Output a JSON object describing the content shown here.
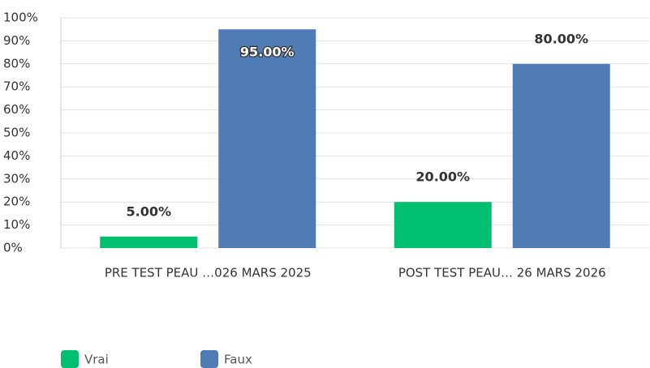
{
  "chart_data": {
    "type": "bar",
    "categories": [
      "PRE TEST PEAU …026 MARS 2025",
      "POST TEST PEAU… 26 MARS 2026"
    ],
    "series": [
      {
        "name": "Vrai",
        "color": "#00bf6f",
        "values": [
          5,
          20
        ],
        "value_labels": [
          "5.00%",
          "20.00%"
        ]
      },
      {
        "name": "Faux",
        "color": "#507cb6",
        "values": [
          95,
          80
        ],
        "value_labels": [
          "95.00%",
          "80.00%"
        ]
      }
    ],
    "ylim": [
      0,
      100
    ],
    "yticks": [
      {
        "value": 0,
        "label": "0%"
      },
      {
        "value": 10,
        "label": "10%"
      },
      {
        "value": 20,
        "label": "20%"
      },
      {
        "value": 30,
        "label": "30%"
      },
      {
        "value": 40,
        "label": "40%"
      },
      {
        "value": 50,
        "label": "50%"
      },
      {
        "value": 60,
        "label": "60%"
      },
      {
        "value": 70,
        "label": "70%"
      },
      {
        "value": 80,
        "label": "80%"
      },
      {
        "value": 90,
        "label": "90%"
      },
      {
        "value": 100,
        "label": "100%"
      }
    ],
    "grid": true,
    "legend": "bottom-left"
  }
}
